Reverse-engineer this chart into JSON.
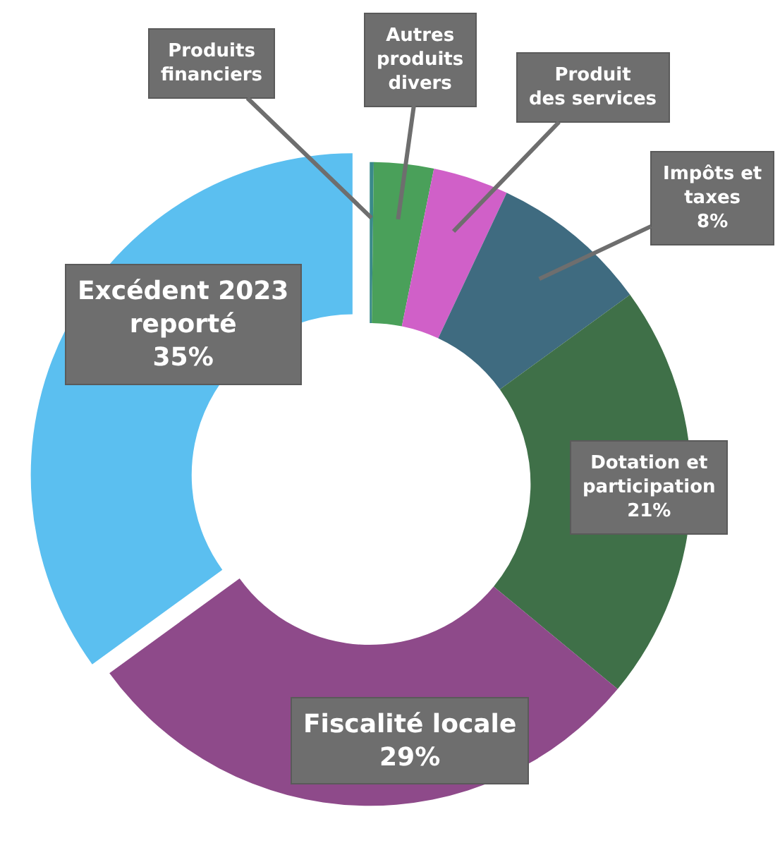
{
  "chart_data": {
    "type": "donut",
    "categories": [
      "Produits financiers",
      "Autres produits divers",
      "Produit des services",
      "Impôts et taxes",
      "Dotation et participation",
      "Fiscalité locale",
      "Excédent 2023 reporté"
    ],
    "values": [
      0.2,
      3,
      3.8,
      8,
      21,
      29,
      35
    ],
    "value_labels": [
      null,
      null,
      null,
      "8%",
      "21%",
      "29%",
      "35%"
    ],
    "colors": [
      "#3a8a8a",
      "#4aa05a",
      "#d060c8",
      "#3f6b80",
      "#3f7048",
      "#8e4a8a",
      "#5bbff0"
    ]
  }
}
